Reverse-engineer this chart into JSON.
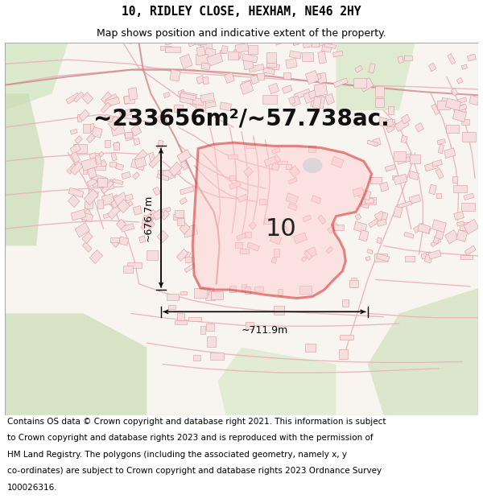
{
  "title_line1": "10, RIDLEY CLOSE, HEXHAM, NE46 2HY",
  "title_line2": "Map shows position and indicative extent of the property.",
  "area_text": "~233656m²/~57.738ac.",
  "width_text": "~711.9m",
  "height_text": "~676.7m",
  "plot_number": "10",
  "footer_lines": [
    "Contains OS data © Crown copyright and database right 2021. This information is subject",
    "to Crown copyright and database rights 2023 and is reproduced with the permission of",
    "HM Land Registry. The polygons (including the associated geometry, namely x, y",
    "co-ordinates) are subject to Crown copyright and database rights 2023 Ordnance Survey",
    "100026316."
  ],
  "title_fontsize": 10.5,
  "subtitle_fontsize": 9,
  "area_fontsize": 20,
  "label_fontsize": 9,
  "footer_fontsize": 7.5,
  "plot_number_fontsize": 22,
  "white_bg": "#ffffff",
  "map_bg": "#f7f2ee",
  "road_pink": "#e8b4b8",
  "road_red": "#cc4444",
  "bldg_fill": "#f5dede",
  "bldg_edge": "#dd9999",
  "poly_fill": "#ff000033",
  "poly_edge": "#cc0000",
  "green1": "#d4e8c4",
  "green2": "#c8ddb4",
  "green3": "#ddeedd"
}
